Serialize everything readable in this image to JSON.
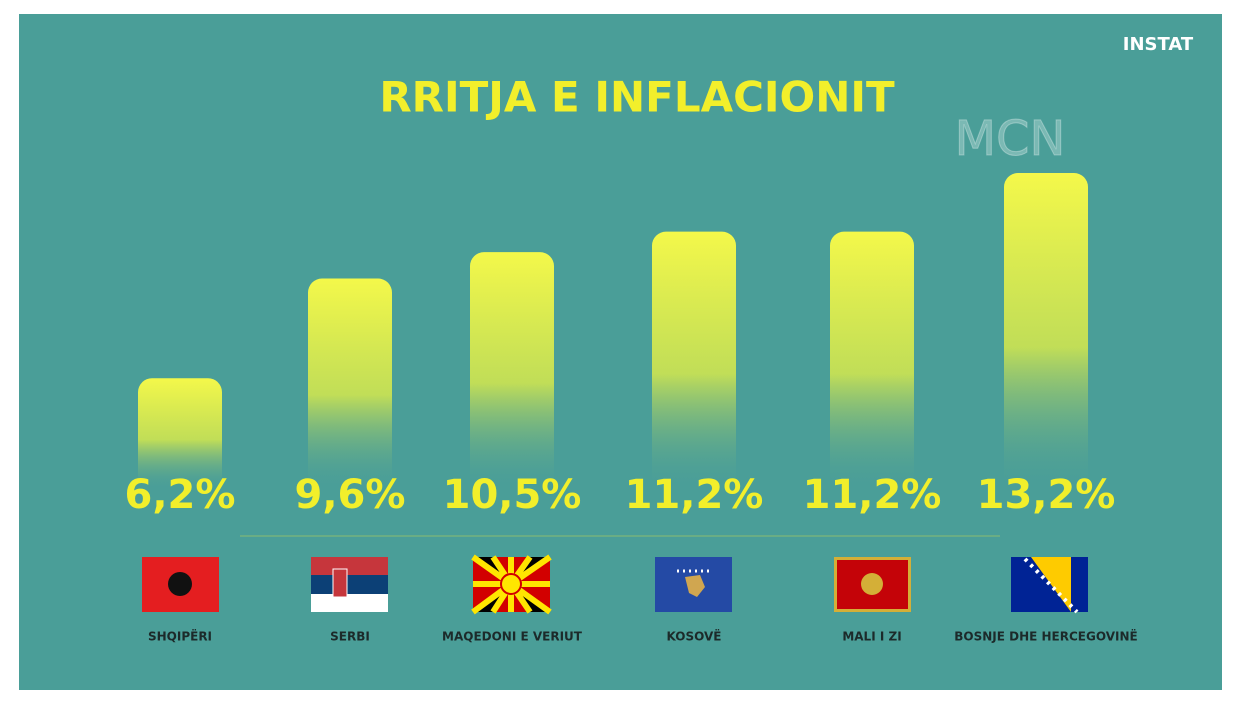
{
  "chart_data": {
    "type": "bar",
    "title": "RRITJA E INFLACIONIT",
    "logo": "INSTAT",
    "watermark": "MCN",
    "categories": [
      "SHQIPËRI",
      "SERBI",
      "MAQEDONI E VERIUT",
      "KOSOVË",
      "MALI I ZI",
      "BOSNJE DHE HERCEGOVINË"
    ],
    "values": [
      6.2,
      9.6,
      10.5,
      11.2,
      11.2,
      13.2
    ],
    "value_labels": [
      "6,2%",
      "9,6%",
      "10,5%",
      "11,2%",
      "11,2%",
      "13,2%"
    ],
    "color": "#f4f84a"
  }
}
